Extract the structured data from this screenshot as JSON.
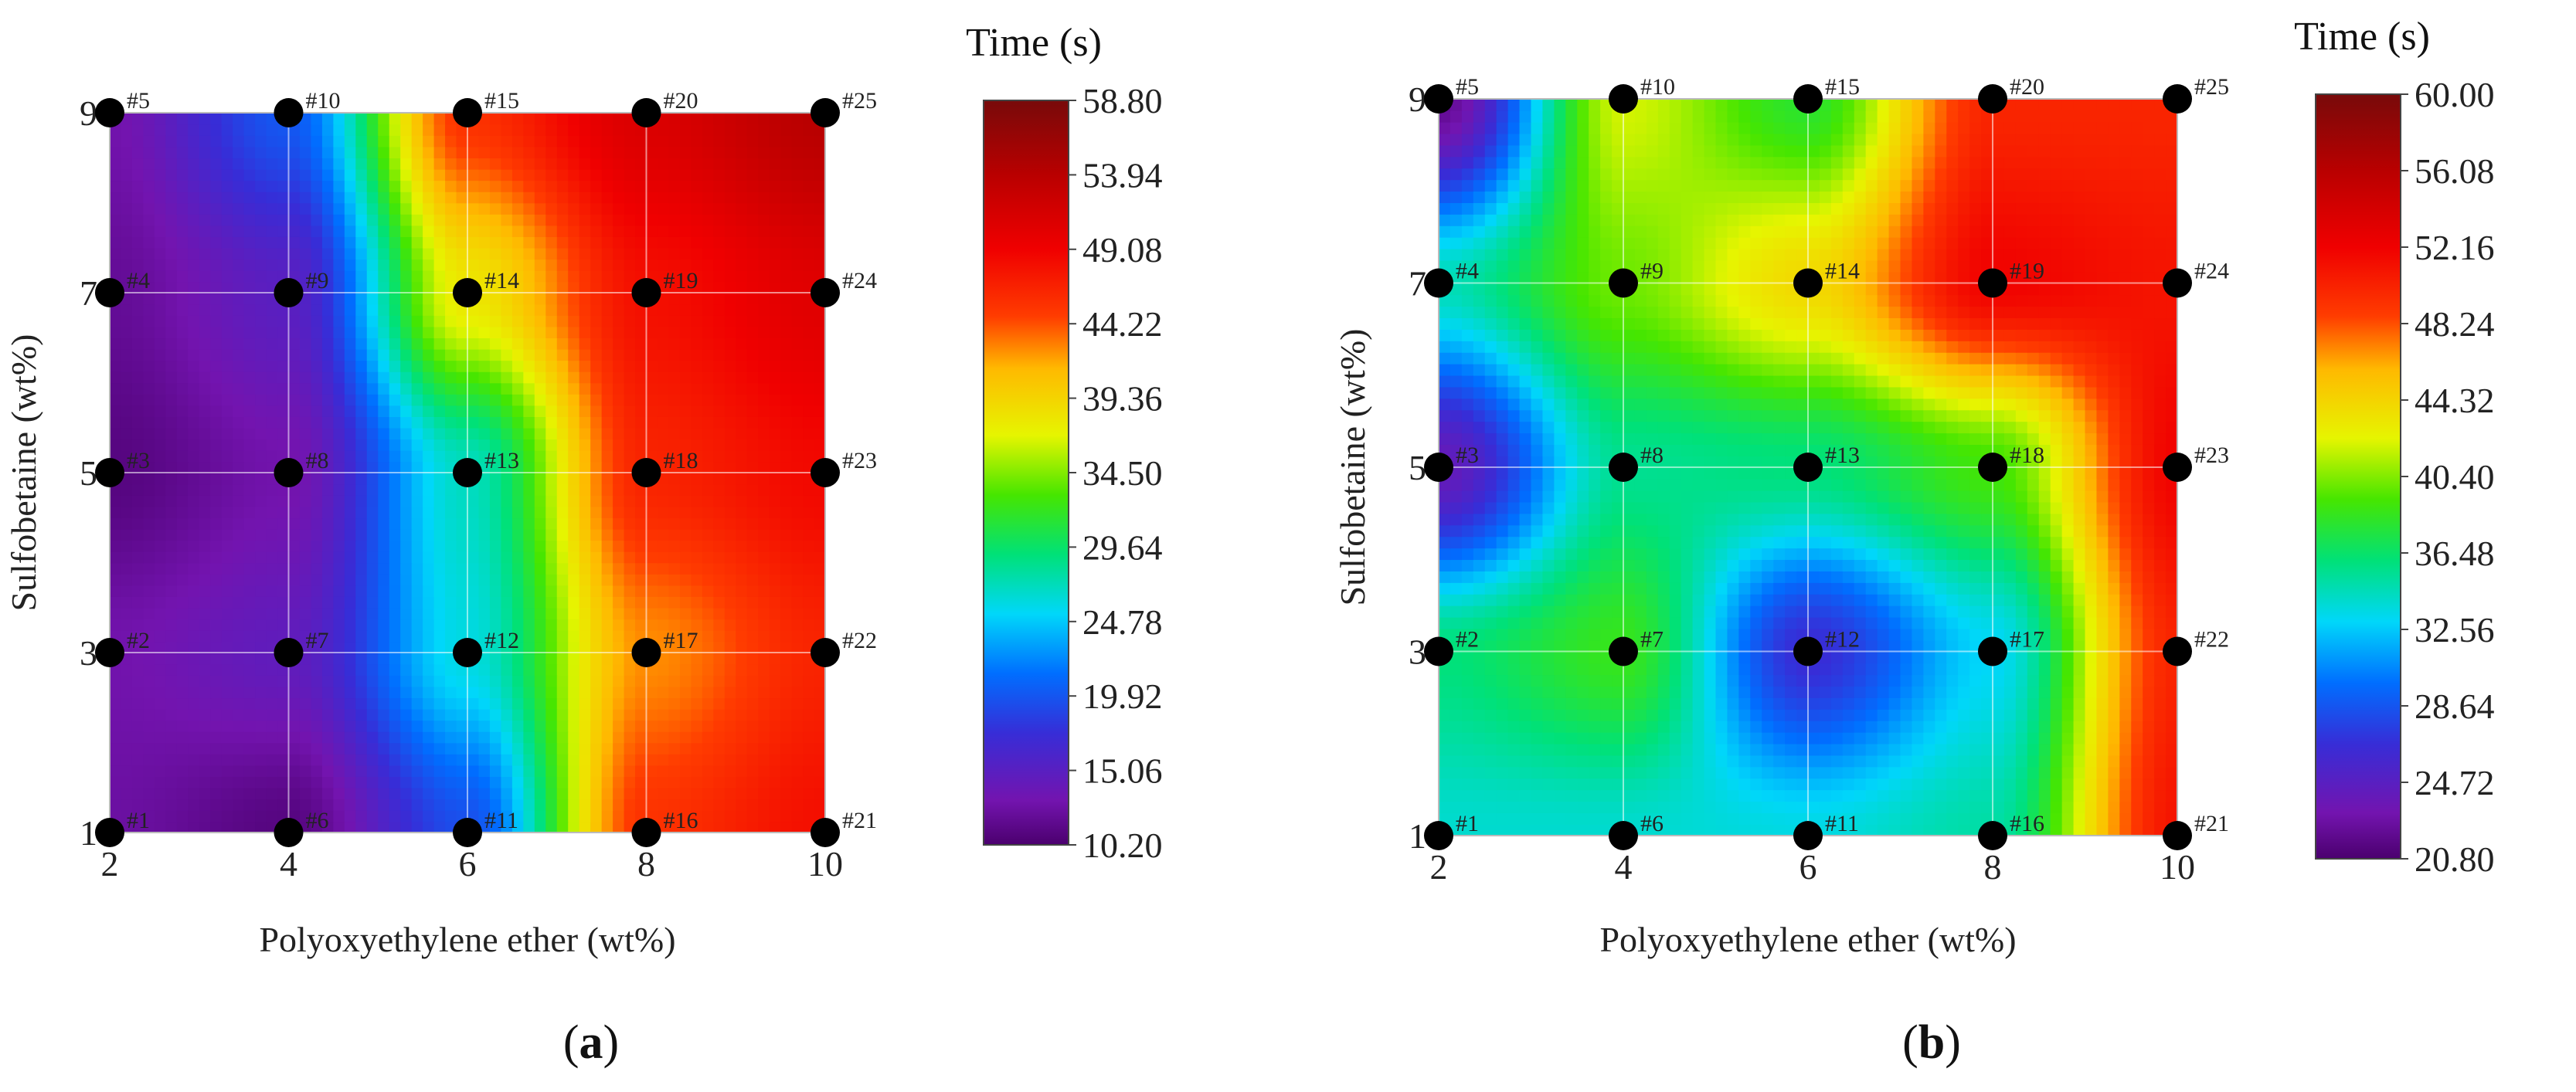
{
  "figure": {
    "panel_labels": [
      {
        "open": "(",
        "letter": "a",
        "close": ")"
      },
      {
        "open": "(",
        "letter": "b",
        "close": ")"
      }
    ]
  },
  "chart_data": [
    {
      "type": "heatmap",
      "panel": "a",
      "title": "",
      "xlabel": "Polyoxyethylene ether (wt%)",
      "ylabel": "Sulfobetaine (wt%)",
      "x": [
        2,
        4,
        6,
        8,
        10
      ],
      "y": [
        1,
        3,
        5,
        7,
        9
      ],
      "xlim": [
        2,
        10
      ],
      "ylim": [
        1,
        9
      ],
      "grid": true,
      "colorbar": {
        "title": "Time (s)",
        "min": 10.2,
        "max": 58.8,
        "ticks": [
          "10.20",
          "15.06",
          "19.92",
          "24.78",
          "29.64",
          "34.50",
          "39.36",
          "44.22",
          "49.08",
          "53.94",
          "58.80"
        ]
      },
      "z": [
        [
          12.5,
          11.0,
          19.5,
          45.5,
          48.0
        ],
        [
          13.0,
          14.5,
          26.0,
          42.5,
          46.5
        ],
        [
          11.0,
          13.0,
          27.0,
          46.5,
          48.5
        ],
        [
          12.0,
          15.0,
          38.0,
          48.0,
          50.5
        ],
        [
          13.0,
          20.0,
          45.5,
          51.0,
          54.0
        ]
      ],
      "points": [
        {
          "label": "#1",
          "x": 2,
          "y": 1
        },
        {
          "label": "#2",
          "x": 2,
          "y": 3
        },
        {
          "label": "#3",
          "x": 2,
          "y": 5
        },
        {
          "label": "#4",
          "x": 2,
          "y": 7
        },
        {
          "label": "#5",
          "x": 2,
          "y": 9
        },
        {
          "label": "#6",
          "x": 4,
          "y": 1
        },
        {
          "label": "#7",
          "x": 4,
          "y": 3
        },
        {
          "label": "#8",
          "x": 4,
          "y": 5
        },
        {
          "label": "#9",
          "x": 4,
          "y": 7
        },
        {
          "label": "#10",
          "x": 4,
          "y": 9
        },
        {
          "label": "#11",
          "x": 6,
          "y": 1
        },
        {
          "label": "#12",
          "x": 6,
          "y": 3
        },
        {
          "label": "#13",
          "x": 6,
          "y": 5
        },
        {
          "label": "#14",
          "x": 6,
          "y": 7
        },
        {
          "label": "#15",
          "x": 6,
          "y": 9
        },
        {
          "label": "#16",
          "x": 8,
          "y": 1
        },
        {
          "label": "#17",
          "x": 8,
          "y": 3
        },
        {
          "label": "#18",
          "x": 8,
          "y": 5
        },
        {
          "label": "#19",
          "x": 8,
          "y": 7
        },
        {
          "label": "#20",
          "x": 8,
          "y": 9
        },
        {
          "label": "#21",
          "x": 10,
          "y": 1
        },
        {
          "label": "#22",
          "x": 10,
          "y": 3
        },
        {
          "label": "#23",
          "x": 10,
          "y": 5
        },
        {
          "label": "#24",
          "x": 10,
          "y": 7
        },
        {
          "label": "#25",
          "x": 10,
          "y": 9
        }
      ]
    },
    {
      "type": "heatmap",
      "panel": "b",
      "title": "",
      "xlabel": "Polyoxyethylene ether (wt%)",
      "ylabel": "Sulfobetaine (wt%)",
      "x": [
        2,
        4,
        6,
        8,
        10
      ],
      "y": [
        1,
        3,
        5,
        7,
        9
      ],
      "xlim": [
        2,
        10
      ],
      "ylim": [
        1,
        9
      ],
      "grid": true,
      "colorbar": {
        "title": "Time (s)",
        "min": 20.8,
        "max": 60.0,
        "ticks": [
          "20.80",
          "24.72",
          "28.64",
          "32.56",
          "36.48",
          "40.40",
          "44.32",
          "48.24",
          "52.16",
          "56.08",
          "60.00"
        ]
      },
      "z": [
        [
          34.0,
          34.0,
          33.5,
          35.0,
          51.0
        ],
        [
          36.0,
          38.5,
          26.5,
          33.0,
          50.0
        ],
        [
          24.0,
          35.5,
          36.0,
          39.0,
          52.0
        ],
        [
          34.5,
          40.0,
          44.0,
          52.0,
          51.0
        ],
        [
          22.0,
          42.0,
          38.0,
          50.0,
          50.0
        ]
      ],
      "points": [
        {
          "label": "#1",
          "x": 2,
          "y": 1
        },
        {
          "label": "#2",
          "x": 2,
          "y": 3
        },
        {
          "label": "#3",
          "x": 2,
          "y": 5
        },
        {
          "label": "#4",
          "x": 2,
          "y": 7
        },
        {
          "label": "#5",
          "x": 2,
          "y": 9
        },
        {
          "label": "#6",
          "x": 4,
          "y": 1
        },
        {
          "label": "#7",
          "x": 4,
          "y": 3
        },
        {
          "label": "#8",
          "x": 4,
          "y": 5
        },
        {
          "label": "#9",
          "x": 4,
          "y": 7
        },
        {
          "label": "#10",
          "x": 4,
          "y": 9
        },
        {
          "label": "#11",
          "x": 6,
          "y": 1
        },
        {
          "label": "#12",
          "x": 6,
          "y": 3
        },
        {
          "label": "#13",
          "x": 6,
          "y": 5
        },
        {
          "label": "#14",
          "x": 6,
          "y": 7
        },
        {
          "label": "#15",
          "x": 6,
          "y": 9
        },
        {
          "label": "#16",
          "x": 8,
          "y": 1
        },
        {
          "label": "#17",
          "x": 8,
          "y": 3
        },
        {
          "label": "#18",
          "x": 8,
          "y": 5
        },
        {
          "label": "#19",
          "x": 8,
          "y": 7
        },
        {
          "label": "#20",
          "x": 8,
          "y": 9
        },
        {
          "label": "#21",
          "x": 10,
          "y": 1
        },
        {
          "label": "#22",
          "x": 10,
          "y": 3
        },
        {
          "label": "#23",
          "x": 10,
          "y": 5
        },
        {
          "label": "#24",
          "x": 10,
          "y": 7
        },
        {
          "label": "#25",
          "x": 10,
          "y": 9
        }
      ]
    }
  ]
}
